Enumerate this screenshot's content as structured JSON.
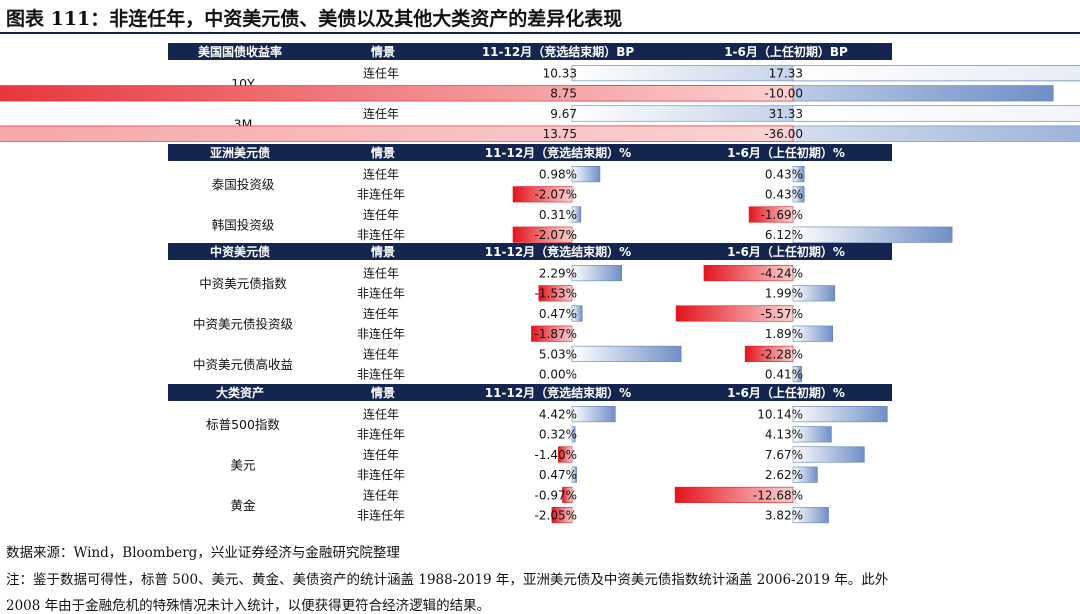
{
  "figure": {
    "title": "图表 111：非连任年，中资美元债、美债以及其他大类资产的差异化表现",
    "source": "数据来源：Wind，Bloomberg，兴业证券经济与金融研究院整理",
    "note_line1": "注：鉴于数据可得性，标普 500、美元、黄金、美债资产的统计涵盖 1988-2019 年，亚洲美元债及中资美元债指数统计涵盖 2006-2019 年。此外",
    "note_line2": "2008 年由于金融危机的特殊情况未计入统计，以便获得更符合经济逻辑的结果。"
  },
  "chart_data": {
    "type": "table",
    "columns": [
      "情景",
      "11-12月（竞选结束期）",
      "1-6月（上任初期）"
    ],
    "sections": [
      {
        "name": "美国国债收益率",
        "col1": "11-12月（竞选结束期）BP",
        "col2": "1-6月（上任初期）BP",
        "scale1": 55,
        "scale2": 97,
        "groups": [
          {
            "name": "10Y",
            "rows": [
              {
                "scenario": "连任年",
                "v1": 10.33,
                "t1": "10.33",
                "v2": 17.33,
                "t2": "17.33"
              },
              {
                "scenario": "非连任年",
                "v1": 8.75,
                "t1": "8.75",
                "v2": -10.0,
                "t2": "-10.00"
              }
            ]
          },
          {
            "name": "3M",
            "rows": [
              {
                "scenario": "连任年",
                "v1": 9.67,
                "t1": "9.67",
                "v2": 31.33,
                "t2": "31.33"
              },
              {
                "scenario": "非连任年",
                "v1": 13.75,
                "t1": "13.75",
                "v2": -36.0,
                "t2": "-36.00"
              }
            ]
          }
        ]
      },
      {
        "name": "亚洲美元债",
        "col1": "11-12月（竞选结束期）%",
        "col2": "1-6月（上任初期）%",
        "scale1": 28.5,
        "scale2": 26,
        "groups": [
          {
            "name": "泰国投资级",
            "rows": [
              {
                "scenario": "连任年",
                "v1": 0.98,
                "t1": "0.98%",
                "v2": 0.43,
                "t2": "0.43%"
              },
              {
                "scenario": "非连任年",
                "v1": -2.07,
                "t1": "-2.07%",
                "v2": 0.43,
                "t2": "0.43%"
              }
            ]
          },
          {
            "name": "韩国投资级",
            "rows": [
              {
                "scenario": "连任年",
                "v1": 0.31,
                "t1": "0.31%",
                "v2": -1.69,
                "t2": "-1.69%"
              },
              {
                "scenario": "非连任年",
                "v1": -2.07,
                "t1": "-2.07%",
                "v2": 6.12,
                "t2": "6.12%"
              }
            ]
          }
        ]
      },
      {
        "name": "中资美元债",
        "col1": "11-12月（竞选结束期）%",
        "col2": "1-6月（上任初期）%",
        "scale1": 21.7,
        "scale2": 21,
        "groups": [
          {
            "name": "中资美元债指数",
            "rows": [
              {
                "scenario": "连任年",
                "v1": 2.29,
                "t1": "2.29%",
                "v2": -4.24,
                "t2": "-4.24%"
              },
              {
                "scenario": "非连任年",
                "v1": -1.53,
                "t1": "-1.53%",
                "v2": 1.99,
                "t2": "1.99%"
              }
            ]
          },
          {
            "name": "中资美元债投资级",
            "rows": [
              {
                "scenario": "连任年",
                "v1": 0.47,
                "t1": "0.47%",
                "v2": -5.57,
                "t2": "-5.57%"
              },
              {
                "scenario": "非连任年",
                "v1": -1.87,
                "t1": "-1.87%",
                "v2": 1.89,
                "t2": "1.89%"
              }
            ]
          },
          {
            "name": "中资美元债高收益",
            "rows": [
              {
                "scenario": "连任年",
                "v1": 5.03,
                "t1": "5.03%",
                "v2": -2.28,
                "t2": "-2.28%"
              },
              {
                "scenario": "非连任年",
                "v1": 0.0,
                "t1": "0.00%",
                "v2": 0.41,
                "t2": "0.41%"
              }
            ]
          }
        ]
      },
      {
        "name": "大类资产",
        "col1": "11-12月（竞选结束期）%",
        "col2": "1-6月（上任初期）%",
        "scale1": 9.8,
        "scale2": 9.3,
        "groups": [
          {
            "name": "标普500指数",
            "rows": [
              {
                "scenario": "连任年",
                "v1": 4.42,
                "t1": "4.42%",
                "v2": 10.14,
                "t2": "10.14%"
              },
              {
                "scenario": "非连任年",
                "v1": 0.32,
                "t1": "0.32%",
                "v2": 4.13,
                "t2": "4.13%"
              }
            ]
          },
          {
            "name": "美元",
            "rows": [
              {
                "scenario": "连任年",
                "v1": -1.4,
                "t1": "-1.40%",
                "v2": 7.67,
                "t2": "7.67%"
              },
              {
                "scenario": "非连任年",
                "v1": 0.47,
                "t1": "0.47%",
                "v2": 2.62,
                "t2": "2.62%"
              }
            ]
          },
          {
            "name": "黄金",
            "rows": [
              {
                "scenario": "连任年",
                "v1": -0.97,
                "t1": "-0.97%",
                "v2": -12.68,
                "t2": "-12.68%"
              },
              {
                "scenario": "非连任年",
                "v1": -2.05,
                "t1": "-2.05%",
                "v2": 3.82,
                "t2": "3.82%"
              }
            ]
          }
        ]
      }
    ],
    "colors": {
      "header_bg": "#14264f",
      "positive_bar": "#9fb4d8",
      "negative_bar": "#e8262b",
      "text": "#111111"
    }
  }
}
